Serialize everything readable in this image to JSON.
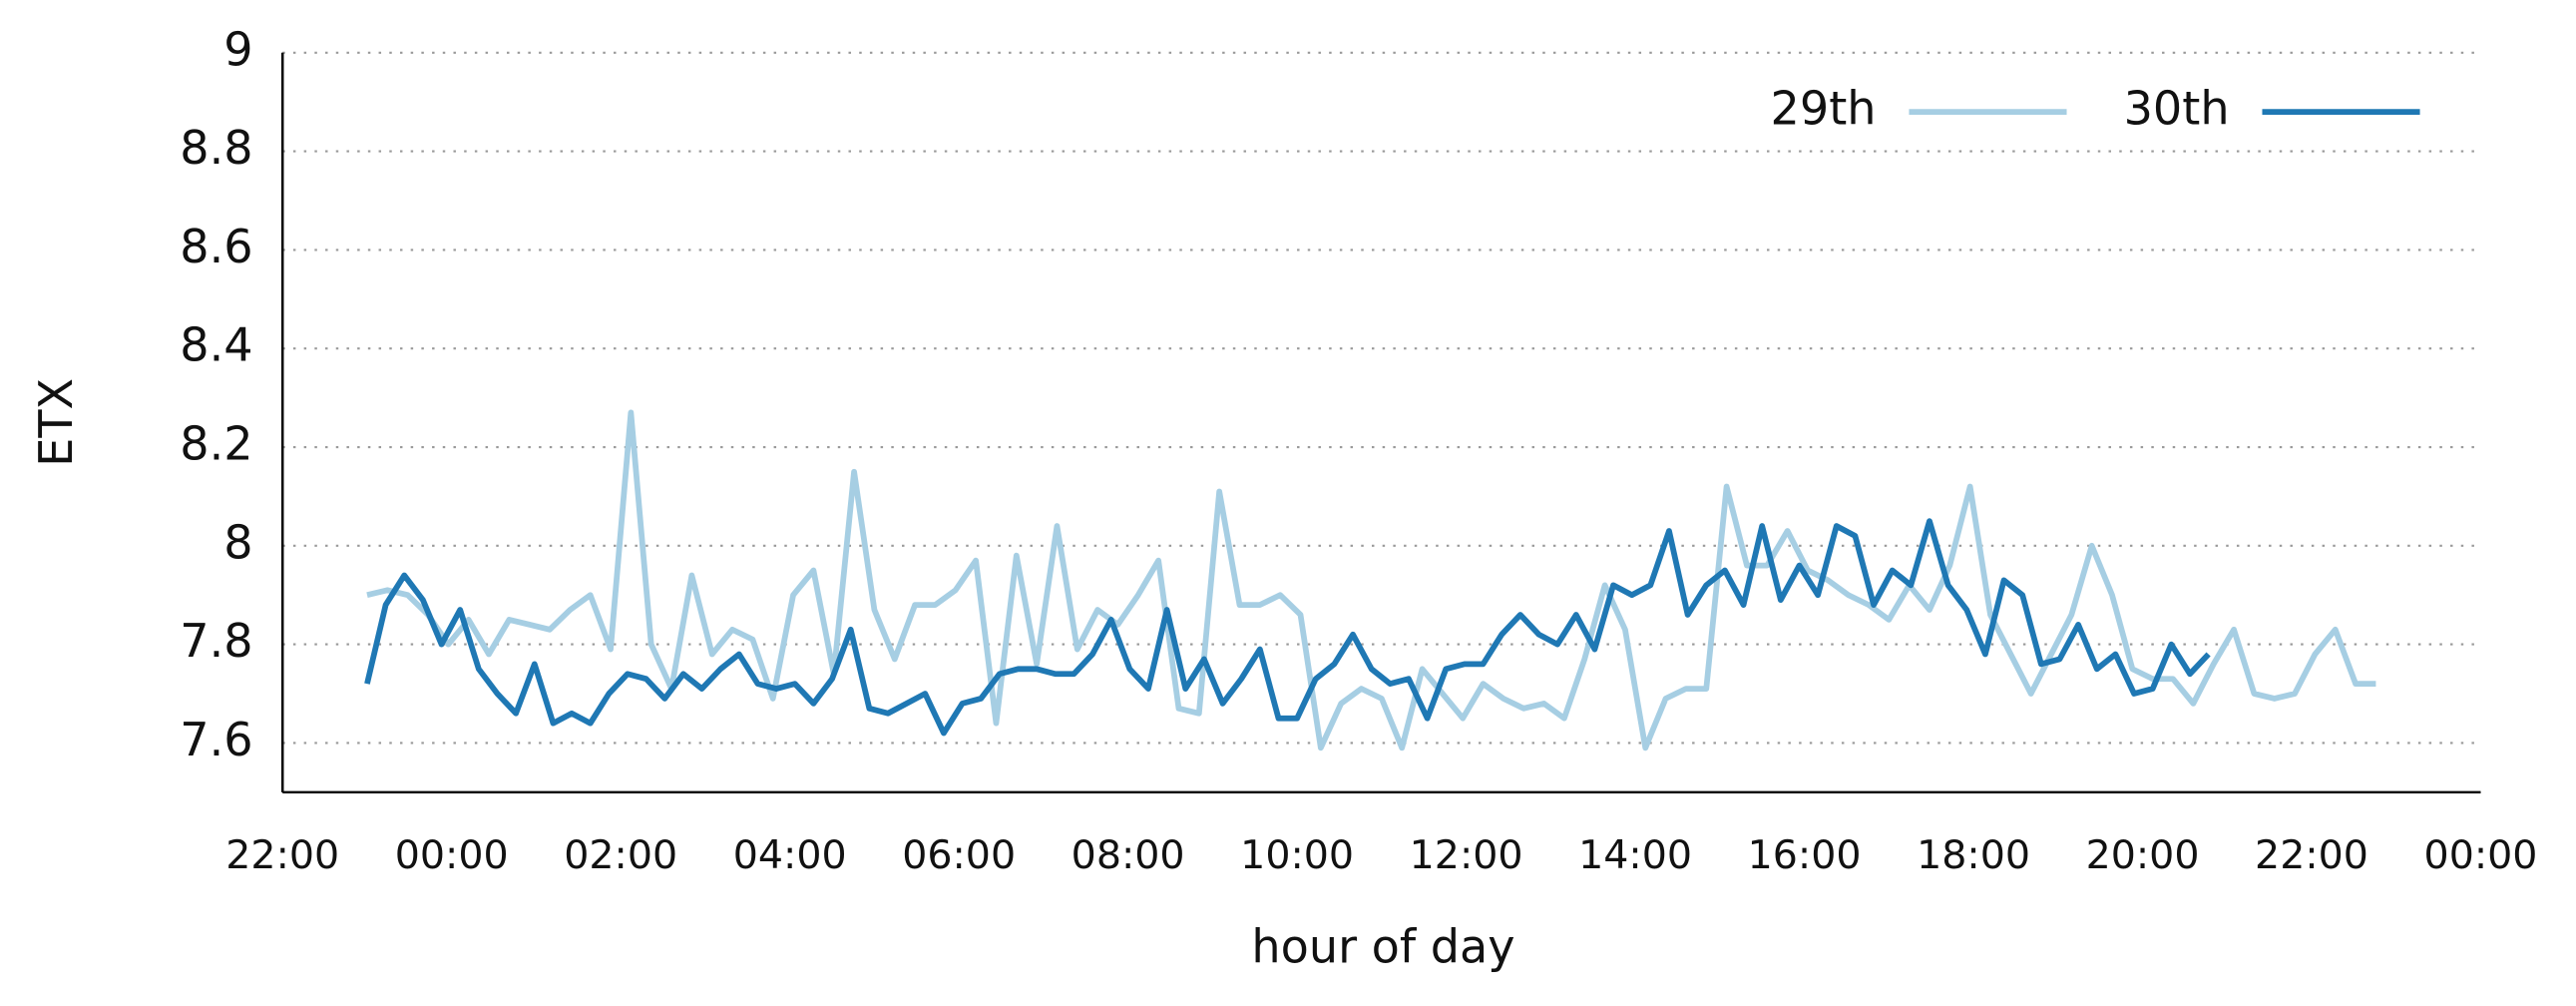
{
  "chart_data": {
    "type": "line",
    "y_label": "ETX",
    "x_label": "hour of day",
    "xlim": [
      -2,
      24
    ],
    "ylim": [
      7.5,
      9
    ],
    "xticks": [
      {
        "value": -2,
        "label": "22:00"
      },
      {
        "value": 0,
        "label": "00:00"
      },
      {
        "value": 2,
        "label": "02:00"
      },
      {
        "value": 4,
        "label": "04:00"
      },
      {
        "value": 6,
        "label": "06:00"
      },
      {
        "value": 8,
        "label": "08:00"
      },
      {
        "value": 10,
        "label": "10:00"
      },
      {
        "value": 12,
        "label": "12:00"
      },
      {
        "value": 14,
        "label": "14:00"
      },
      {
        "value": 16,
        "label": "16:00"
      },
      {
        "value": 18,
        "label": "18:00"
      },
      {
        "value": 20,
        "label": "20:00"
      },
      {
        "value": 22,
        "label": "22:00"
      },
      {
        "value": 24,
        "label": "00:00"
      }
    ],
    "yticks": [
      7.6,
      7.8,
      8,
      8.2,
      8.4,
      8.6,
      8.8,
      9
    ],
    "grid": true,
    "legend": "top-right",
    "series": [
      {
        "name": "29th",
        "color": "#a6cee3",
        "x": [
          -1,
          -0.76,
          -0.52,
          -0.28,
          -0.04,
          0.2,
          0.44,
          0.68,
          0.92,
          1.16,
          1.4,
          1.64,
          1.88,
          2.12,
          2.36,
          2.6,
          2.84,
          3.08,
          3.32,
          3.56,
          3.8,
          4.04,
          4.28,
          4.52,
          4.76,
          5,
          5.24,
          5.48,
          5.72,
          5.96,
          6.2,
          6.44,
          6.68,
          6.92,
          7.16,
          7.4,
          7.64,
          7.88,
          8.12,
          8.36,
          8.6,
          8.84,
          9.08,
          9.32,
          9.56,
          9.8,
          10.04,
          10.28,
          10.52,
          10.76,
          11,
          11.24,
          11.48,
          11.72,
          11.96,
          12.2,
          12.44,
          12.68,
          12.92,
          13.16,
          13.4,
          13.64,
          13.88,
          14.12,
          14.36,
          14.6,
          14.84,
          15.08,
          15.32,
          15.56,
          15.8,
          16.04,
          16.28,
          16.52,
          16.76,
          17,
          17.24,
          17.48,
          17.72,
          17.96,
          18.2,
          18.44,
          18.68,
          18.92,
          19.16,
          19.4,
          19.64,
          19.88,
          20.12,
          20.36,
          20.6,
          20.84,
          21.08,
          21.32,
          21.56,
          21.8,
          22.04,
          22.28,
          22.52,
          22.76
        ],
        "values": [
          7.9,
          7.91,
          7.9,
          7.86,
          7.8,
          7.85,
          7.78,
          7.85,
          7.84,
          7.83,
          7.87,
          7.9,
          7.79,
          8.27,
          7.8,
          7.71,
          7.94,
          7.78,
          7.83,
          7.81,
          7.69,
          7.9,
          7.95,
          7.74,
          8.15,
          7.87,
          7.77,
          7.88,
          7.88,
          7.91,
          7.97,
          7.64,
          7.98,
          7.76,
          8.04,
          7.79,
          7.87,
          7.84,
          7.9,
          7.97,
          7.67,
          7.66,
          8.11,
          7.88,
          7.88,
          7.9,
          7.86,
          7.59,
          7.68,
          7.71,
          7.69,
          7.59,
          7.75,
          7.7,
          7.65,
          7.72,
          7.69,
          7.67,
          7.68,
          7.65,
          7.77,
          7.92,
          7.83,
          7.59,
          7.69,
          7.71,
          7.71,
          8.12,
          7.96,
          7.96,
          8.03,
          7.95,
          7.93,
          7.9,
          7.88,
          7.85,
          7.92,
          7.87,
          7.96,
          8.12,
          7.86,
          7.78,
          7.7,
          7.78,
          7.86,
          8.0,
          7.9,
          7.75,
          7.73,
          7.73,
          7.68,
          7.76,
          7.83,
          7.7,
          7.69,
          7.7,
          7.78,
          7.83,
          7.72,
          7.72
        ]
      },
      {
        "name": "30th",
        "color": "#1f78b4",
        "x": [
          -1,
          -0.78,
          -0.56,
          -0.34,
          -0.12,
          0.1,
          0.32,
          0.54,
          0.76,
          0.98,
          1.2,
          1.42,
          1.64,
          1.86,
          2.08,
          2.3,
          2.52,
          2.74,
          2.96,
          3.18,
          3.4,
          3.62,
          3.84,
          4.06,
          4.28,
          4.5,
          4.72,
          4.94,
          5.16,
          5.38,
          5.6,
          5.82,
          6.04,
          6.26,
          6.48,
          6.7,
          6.92,
          7.14,
          7.36,
          7.58,
          7.8,
          8.02,
          8.24,
          8.46,
          8.68,
          8.9,
          9.12,
          9.34,
          9.56,
          9.78,
          10,
          10.22,
          10.44,
          10.66,
          10.88,
          11.1,
          11.32,
          11.54,
          11.76,
          11.98,
          12.2,
          12.42,
          12.64,
          12.86,
          13.08,
          13.3,
          13.52,
          13.74,
          13.96,
          14.18,
          14.4,
          14.62,
          14.84,
          15.06,
          15.28,
          15.5,
          15.72,
          15.94,
          16.16,
          16.38,
          16.6,
          16.82,
          17.04,
          17.26,
          17.48,
          17.7,
          17.92,
          18.14,
          18.36,
          18.58,
          18.8,
          19.02,
          19.24,
          19.46,
          19.68,
          19.9,
          20.12,
          20.34,
          20.56,
          20.78
        ],
        "values": [
          7.72,
          7.88,
          7.94,
          7.89,
          7.8,
          7.87,
          7.75,
          7.7,
          7.66,
          7.76,
          7.64,
          7.66,
          7.64,
          7.7,
          7.74,
          7.73,
          7.69,
          7.74,
          7.71,
          7.75,
          7.78,
          7.72,
          7.71,
          7.72,
          7.68,
          7.73,
          7.83,
          7.67,
          7.66,
          7.68,
          7.7,
          7.62,
          7.68,
          7.69,
          7.74,
          7.75,
          7.75,
          7.74,
          7.74,
          7.78,
          7.85,
          7.75,
          7.71,
          7.87,
          7.71,
          7.77,
          7.68,
          7.73,
          7.79,
          7.65,
          7.65,
          7.73,
          7.76,
          7.82,
          7.75,
          7.72,
          7.73,
          7.65,
          7.75,
          7.76,
          7.76,
          7.82,
          7.86,
          7.82,
          7.8,
          7.86,
          7.79,
          7.92,
          7.9,
          7.92,
          8.03,
          7.86,
          7.92,
          7.95,
          7.88,
          8.04,
          7.89,
          7.96,
          7.9,
          8.04,
          8.02,
          7.88,
          7.95,
          7.92,
          8.05,
          7.92,
          7.87,
          7.78,
          7.93,
          7.9,
          7.76,
          7.77,
          7.84,
          7.75,
          7.78,
          7.7,
          7.71,
          7.8,
          7.74,
          7.78
        ]
      }
    ]
  }
}
